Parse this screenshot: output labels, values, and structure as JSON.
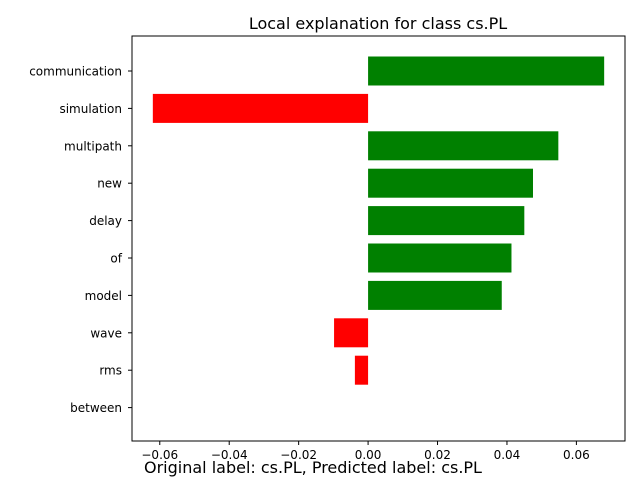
{
  "chart_data": {
    "type": "bar",
    "orientation": "horizontal",
    "title": "Local explanation for class cs.PL",
    "categories": [
      "communication",
      "simulation",
      "multipath",
      "new",
      "delay",
      "of",
      "model",
      "wave",
      "rms",
      "between"
    ],
    "values": [
      0.068,
      -0.062,
      0.0548,
      0.0475,
      0.045,
      0.0413,
      0.0385,
      -0.0098,
      -0.0038,
      0.0
    ],
    "xlim": [
      -0.068,
      0.074
    ],
    "xticks": [
      -0.06,
      -0.04,
      -0.02,
      0.0,
      0.02,
      0.04,
      0.06
    ],
    "xtick_labels": [
      "−0.06",
      "−0.04",
      "−0.02",
      "0.00",
      "0.02",
      "0.04",
      "0.06"
    ],
    "positive_color": "#008000",
    "negative_color": "#ff0000",
    "grid": false
  },
  "footer": "Original label: cs.PL, Predicted label: cs.PL"
}
